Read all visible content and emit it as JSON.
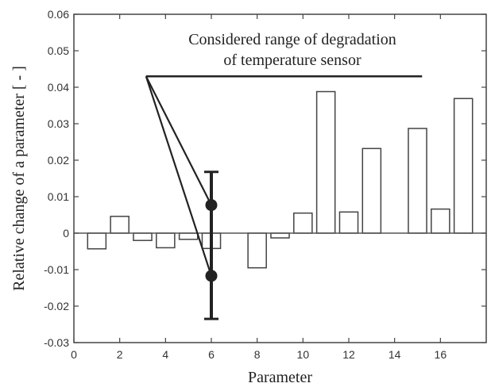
{
  "chart_data": {
    "type": "bar",
    "title": "",
    "xlabel": "Parameter",
    "ylabel": "Relative change of a parameter [ - ]",
    "xlim": [
      0,
      18
    ],
    "ylim": [
      -0.03,
      0.06
    ],
    "xticks": [
      0,
      2,
      4,
      6,
      8,
      10,
      12,
      14,
      16
    ],
    "xtick_labels": [
      "0",
      "2",
      "4",
      "6",
      "8",
      "10",
      "12",
      "14",
      "16"
    ],
    "yticks": [
      -0.03,
      -0.02,
      -0.01,
      0,
      0.01,
      0.02,
      0.03,
      0.04,
      0.05,
      0.06
    ],
    "ytick_labels": [
      "-0.03",
      "-0.02",
      "-0.01",
      "0",
      "0.01",
      "0.02",
      "0.03",
      "0.04",
      "0.05",
      "0.06"
    ],
    "grid": false,
    "bar_width": 0.8,
    "categories": [
      1,
      2,
      3,
      4,
      5,
      6,
      8,
      9,
      10,
      11,
      12,
      13,
      15,
      16,
      17
    ],
    "values": [
      -0.0043,
      0.0046,
      -0.002,
      -0.004,
      -0.0017,
      -0.0042,
      -0.0095,
      -0.0013,
      0.0055,
      0.0388,
      0.0058,
      0.0232,
      0.0287,
      0.0066,
      0.0369
    ],
    "error_bar": {
      "x": 6,
      "low": -0.0235,
      "high": 0.0168
    },
    "markers": [
      {
        "x": 6,
        "y": 0.0077
      },
      {
        "x": 6,
        "y": -0.0117
      }
    ],
    "range_line": {
      "x_start": 3.15,
      "x_end": 15.2,
      "y": 0.043
    },
    "annotation_lines": [
      {
        "from": [
          3.15,
          0.043
        ],
        "to": [
          6,
          0.0077
        ]
      },
      {
        "from": [
          3.15,
          0.043
        ],
        "to": [
          6,
          -0.0117
        ]
      }
    ],
    "annotation": {
      "line1": "Considered range of degradation",
      "line2": "of temperature sensor"
    },
    "colors": {
      "axis": "#444444",
      "bar_fill": "#ffffff",
      "bar_stroke": "#444444",
      "error_bar": "#222222",
      "marker": "#222222",
      "annotation_line": "#222222",
      "zero_line": "#555555"
    }
  }
}
